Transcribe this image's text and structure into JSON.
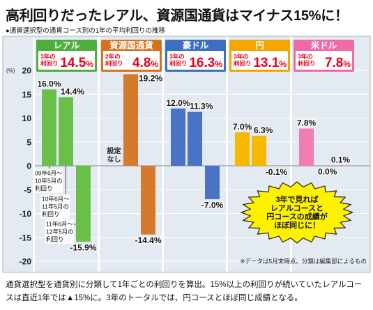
{
  "title": "高利回りだったレアル、資源国通貨はマイナス15%に！",
  "subtitle": "●通貨選択型の通貨コース別の1年の平均利回りの推移",
  "chart_data": {
    "type": "bar",
    "ylabel": "(%)",
    "ylim": [
      -20,
      20
    ],
    "yticks": [
      20,
      15,
      10,
      5,
      0,
      -5,
      -10,
      -15,
      -20
    ],
    "grid": true,
    "periods": [
      [
        "09年6月～",
        "10年5月の",
        "利回り"
      ],
      [
        "10年6月～",
        "11年5月の",
        "利回り"
      ],
      [
        "11年6月～",
        "12年5月の",
        "利回り"
      ]
    ],
    "groups": [
      {
        "name": "レアル",
        "color": "#4fae3e",
        "bar_color": "#6abf4b",
        "total_label": [
          "3年の",
          "利回り"
        ],
        "total_value": "14.5",
        "total_unit": "%",
        "values": [
          16.0,
          14.4,
          -15.9
        ],
        "labels": [
          "16.0%",
          "14.4%",
          "-15.9%"
        ]
      },
      {
        "name": "資源国通貨",
        "color": "#d6721d",
        "bar_color": "#d5792c",
        "total_label": [
          "2年の",
          "利回り"
        ],
        "total_value": "4.8",
        "total_unit": "%",
        "values": [
          null,
          19.2,
          -14.4
        ],
        "labels": [
          null,
          "19.2%",
          "-14.4%"
        ],
        "no_data": [
          "設定",
          "なし"
        ]
      },
      {
        "name": "豪ドル",
        "color": "#3c6ec2",
        "bar_color": "#4a73c6",
        "total_label": [
          "3年の",
          "利回り"
        ],
        "total_value": "16.3",
        "total_unit": "%",
        "values": [
          12.0,
          11.3,
          -7.0
        ],
        "labels": [
          "12.0%",
          "11.3%",
          "-7.0%"
        ]
      },
      {
        "name": "円",
        "color": "#f3a600",
        "bar_color": "#f7b800",
        "total_label": [
          "3年の",
          "利回り"
        ],
        "total_value": "13.1",
        "total_unit": "%",
        "values": [
          7.0,
          6.3,
          -0.1
        ],
        "labels": [
          "7.0%",
          "6.3%",
          "-0.1%"
        ]
      },
      {
        "name": "米ドル",
        "color": "#ef6aa6",
        "bar_color": "#f27db3",
        "total_label": [
          "3年の",
          "利回り"
        ],
        "total_value": "7.8",
        "total_unit": "%",
        "values": [
          7.8,
          0.0,
          0.1
        ],
        "labels": [
          "7.8%",
          "0.0%",
          "0.1%"
        ]
      }
    ],
    "note": "※データは5月末時点。分類は編集部によるもの"
  },
  "callout": [
    "3年で見れば",
    "レアルコースと",
    "円コースの成績が",
    "ほぼ同じに！"
  ],
  "caption": "通貨選択型を通貨別に分類して1年ごとの利回りを算出。15%以上の利回りが続いていたレアルコースは直近1年では▲15%に。3年のトータルでは、円コースとほぼ同じ成績となる。"
}
